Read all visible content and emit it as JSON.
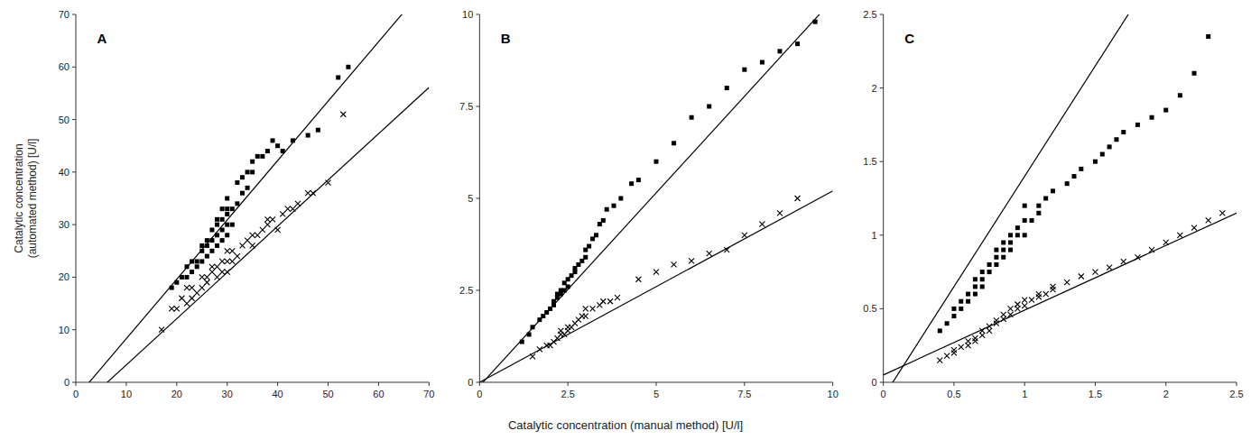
{
  "chart_data": [
    {
      "type": "scatter",
      "title": "A",
      "ylabel": "Catalytic concentration\n(automated method) [U/l]",
      "xlim": [
        0,
        70
      ],
      "ylim": [
        0,
        70
      ],
      "xticks": [
        0,
        10,
        20,
        30,
        40,
        50,
        60,
        70
      ],
      "yticks": [
        0,
        10,
        20,
        30,
        40,
        50,
        60,
        70
      ],
      "grid": false,
      "series": [
        {
          "type": "line",
          "color": "black",
          "line_style": "solid",
          "slope": 1.13,
          "intercept": -3.0
        },
        {
          "type": "line",
          "color": "black",
          "line_style": "solid",
          "slope": 0.88,
          "intercept": -5.5
        },
        {
          "type": "scatter",
          "marker": "square",
          "color": "black",
          "x": [
            19,
            20,
            21,
            22,
            22,
            23,
            23,
            24,
            24,
            25,
            25,
            25,
            26,
            26,
            26,
            27,
            27,
            27,
            28,
            28,
            28,
            28,
            29,
            29,
            29,
            29,
            30,
            30,
            30,
            30,
            30,
            31,
            31,
            32,
            32,
            33,
            33,
            34,
            34,
            35,
            35,
            36,
            37,
            38,
            39,
            40,
            41,
            43,
            46,
            48,
            52,
            54
          ],
          "values": [
            18,
            19,
            20,
            20,
            22,
            21,
            23,
            22,
            23,
            23,
            25,
            26,
            24,
            26,
            27,
            25,
            27,
            29,
            26,
            28,
            30,
            31,
            27,
            29,
            31,
            33,
            28,
            30,
            32,
            33,
            35,
            30,
            33,
            34,
            38,
            36,
            39,
            37,
            40,
            40,
            42,
            43,
            43,
            44,
            46,
            45,
            44,
            46,
            47,
            48,
            58,
            60
          ]
        },
        {
          "type": "scatter",
          "marker": "x",
          "color": "black",
          "x": [
            17,
            19,
            20,
            21,
            22,
            22,
            23,
            23,
            24,
            25,
            25,
            26,
            26,
            27,
            27,
            28,
            28,
            29,
            29,
            30,
            30,
            30,
            31,
            31,
            32,
            33,
            34,
            35,
            35,
            36,
            37,
            38,
            38,
            39,
            40,
            41,
            42,
            43,
            44,
            46,
            47,
            50,
            53
          ],
          "values": [
            10,
            14,
            14,
            16,
            15,
            18,
            16,
            18,
            17,
            18,
            20,
            19,
            20,
            21,
            22,
            20,
            22,
            21,
            23,
            21,
            23,
            25,
            23,
            25,
            24,
            26,
            27,
            26,
            28,
            28,
            29,
            30,
            31,
            31,
            29,
            32,
            33,
            33,
            34,
            36,
            36,
            38,
            51
          ]
        }
      ]
    },
    {
      "type": "scatter",
      "title": "B",
      "xlabel": "Catalytic concentration (manual method) [U/l]",
      "xlim": [
        0,
        10
      ],
      "ylim": [
        0,
        10
      ],
      "xticks": [
        0,
        2.5,
        5,
        7.5,
        10
      ],
      "yticks": [
        0,
        2.5,
        5,
        7.5,
        10
      ],
      "grid": false,
      "series": [
        {
          "type": "line",
          "color": "black",
          "line_style": "solid",
          "slope": 1.05,
          "intercept": -0.1
        },
        {
          "type": "line",
          "color": "black",
          "line_style": "solid",
          "slope": 0.52,
          "intercept": 0.0
        },
        {
          "type": "scatter",
          "marker": "square",
          "color": "black",
          "x": [
            1.2,
            1.4,
            1.5,
            1.7,
            1.8,
            1.9,
            2.0,
            2.1,
            2.1,
            2.2,
            2.2,
            2.3,
            2.3,
            2.4,
            2.4,
            2.5,
            2.5,
            2.6,
            2.7,
            2.7,
            2.8,
            2.9,
            3.0,
            3.0,
            3.1,
            3.2,
            3.3,
            3.4,
            3.5,
            3.6,
            3.8,
            4.0,
            4.3,
            4.5,
            5.0,
            5.5,
            6.0,
            6.5,
            7.0,
            7.5,
            8.0,
            8.5,
            9.0,
            9.5
          ],
          "values": [
            1.1,
            1.3,
            1.5,
            1.7,
            1.8,
            1.9,
            2.0,
            2.1,
            2.2,
            2.3,
            2.4,
            2.4,
            2.5,
            2.5,
            2.7,
            2.6,
            2.8,
            2.9,
            3.0,
            3.1,
            3.2,
            3.3,
            3.4,
            3.6,
            3.7,
            3.9,
            4.0,
            4.3,
            4.4,
            4.7,
            4.8,
            5.0,
            5.4,
            5.5,
            6.0,
            6.5,
            7.2,
            7.5,
            8.0,
            8.5,
            8.7,
            9.0,
            9.2,
            9.8
          ]
        },
        {
          "type": "scatter",
          "marker": "x",
          "color": "black",
          "x": [
            1.5,
            1.7,
            1.9,
            2.0,
            2.1,
            2.2,
            2.3,
            2.3,
            2.4,
            2.5,
            2.5,
            2.6,
            2.7,
            2.8,
            2.9,
            3.0,
            3.0,
            3.2,
            3.4,
            3.5,
            3.7,
            3.9,
            4.5,
            5.0,
            5.5,
            6.0,
            6.5,
            7.0,
            7.5,
            8.0,
            8.5,
            9.0
          ],
          "values": [
            0.7,
            0.9,
            1.0,
            1.0,
            1.1,
            1.2,
            1.3,
            1.4,
            1.3,
            1.4,
            1.5,
            1.5,
            1.6,
            1.7,
            1.8,
            1.8,
            2.0,
            2.0,
            2.1,
            2.2,
            2.2,
            2.3,
            2.8,
            3.0,
            3.2,
            3.3,
            3.5,
            3.6,
            4.0,
            4.3,
            4.6,
            5.0
          ]
        }
      ]
    },
    {
      "type": "scatter",
      "title": "C",
      "xlim": [
        0,
        2.5
      ],
      "ylim": [
        0,
        2.5
      ],
      "xticks": [
        0,
        0.5,
        1,
        1.5,
        2,
        2.5
      ],
      "yticks": [
        0,
        0.5,
        1,
        1.5,
        2,
        2.5
      ],
      "grid": false,
      "series": [
        {
          "type": "line",
          "color": "black",
          "line_style": "solid",
          "slope": 1.5,
          "intercept": -0.1
        },
        {
          "type": "line",
          "color": "black",
          "line_style": "solid",
          "slope": 0.44,
          "intercept": 0.05
        },
        {
          "type": "scatter",
          "marker": "square",
          "color": "black",
          "x": [
            0.4,
            0.45,
            0.5,
            0.5,
            0.55,
            0.55,
            0.6,
            0.6,
            0.65,
            0.65,
            0.65,
            0.7,
            0.7,
            0.7,
            0.75,
            0.75,
            0.8,
            0.8,
            0.8,
            0.85,
            0.85,
            0.85,
            0.9,
            0.9,
            0.9,
            0.95,
            0.95,
            1.0,
            1.0,
            1.0,
            1.05,
            1.1,
            1.1,
            1.15,
            1.2,
            1.3,
            1.35,
            1.4,
            1.5,
            1.55,
            1.6,
            1.65,
            1.7,
            1.8,
            1.9,
            2.0,
            2.1,
            2.2,
            2.3
          ],
          "values": [
            0.35,
            0.4,
            0.45,
            0.5,
            0.5,
            0.55,
            0.55,
            0.6,
            0.6,
            0.65,
            0.7,
            0.65,
            0.7,
            0.75,
            0.75,
            0.8,
            0.8,
            0.85,
            0.9,
            0.85,
            0.9,
            0.95,
            0.9,
            0.95,
            1.0,
            1.0,
            1.05,
            1.0,
            1.1,
            1.2,
            1.1,
            1.15,
            1.2,
            1.25,
            1.3,
            1.35,
            1.4,
            1.45,
            1.5,
            1.55,
            1.6,
            1.65,
            1.7,
            1.75,
            1.8,
            1.85,
            1.95,
            2.1,
            2.35
          ]
        },
        {
          "type": "scatter",
          "marker": "x",
          "color": "black",
          "x": [
            0.4,
            0.45,
            0.5,
            0.5,
            0.55,
            0.6,
            0.6,
            0.65,
            0.65,
            0.7,
            0.7,
            0.75,
            0.75,
            0.8,
            0.8,
            0.85,
            0.85,
            0.9,
            0.9,
            0.95,
            0.95,
            1.0,
            1.0,
            1.05,
            1.1,
            1.1,
            1.15,
            1.2,
            1.2,
            1.3,
            1.4,
            1.5,
            1.6,
            1.7,
            1.8,
            1.9,
            2.0,
            2.1,
            2.2,
            2.3,
            2.4
          ],
          "values": [
            0.15,
            0.18,
            0.2,
            0.22,
            0.24,
            0.25,
            0.28,
            0.28,
            0.3,
            0.32,
            0.35,
            0.35,
            0.38,
            0.4,
            0.42,
            0.43,
            0.46,
            0.46,
            0.5,
            0.5,
            0.53,
            0.52,
            0.56,
            0.56,
            0.58,
            0.6,
            0.6,
            0.63,
            0.65,
            0.68,
            0.72,
            0.75,
            0.78,
            0.82,
            0.85,
            0.9,
            0.95,
            1.0,
            1.05,
            1.1,
            1.15
          ]
        }
      ]
    }
  ]
}
